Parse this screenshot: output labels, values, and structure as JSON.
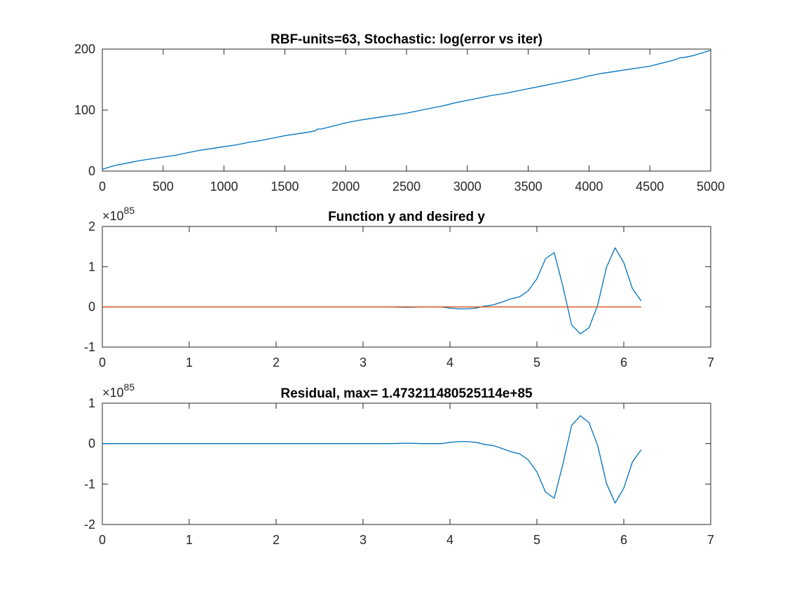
{
  "chart_data": [
    {
      "type": "line",
      "title": "RBF-units=63, Stochastic: log(error vs iter)",
      "xlim": [
        0,
        5000
      ],
      "ylim": [
        0,
        200
      ],
      "xticks": [
        "0",
        "500",
        "1000",
        "1500",
        "2000",
        "2500",
        "3000",
        "3500",
        "4000",
        "4500",
        "5000"
      ],
      "yticks": [
        "0",
        "100",
        "200"
      ],
      "exponent": "",
      "series": [
        {
          "color": "#0072BD",
          "x": [
            0,
            100,
            200,
            300,
            400,
            500,
            600,
            700,
            800,
            900,
            1000,
            1100,
            1200,
            1300,
            1400,
            1500,
            1600,
            1700,
            1750,
            1770,
            1800,
            1900,
            2000,
            2100,
            2200,
            2300,
            2400,
            2500,
            2600,
            2700,
            2800,
            2900,
            3000,
            3100,
            3200,
            3300,
            3400,
            3500,
            3600,
            3700,
            3800,
            3900,
            4000,
            4100,
            4200,
            4300,
            4400,
            4500,
            4600,
            4700,
            4750,
            4770,
            4800,
            4850,
            4900,
            5000
          ],
          "y": [
            3,
            9,
            13,
            17,
            20,
            23,
            26,
            30,
            34,
            37,
            40,
            43,
            47,
            50,
            54,
            58,
            61,
            64,
            66,
            69,
            69,
            74,
            79,
            83,
            86,
            89,
            92,
            95,
            99,
            103,
            107,
            112,
            116,
            120,
            124,
            127,
            131,
            135,
            139,
            143,
            147,
            151,
            156,
            160,
            163,
            166,
            169,
            172,
            177,
            182,
            186,
            186,
            187,
            189,
            192,
            198
          ]
        }
      ]
    },
    {
      "type": "line",
      "title": "Function y and desired y",
      "xlim": [
        0,
        7
      ],
      "ylim": [
        -1,
        2
      ],
      "xticks": [
        "0",
        "1",
        "2",
        "3",
        "4",
        "5",
        "6",
        "7"
      ],
      "yticks": [
        "-1",
        "0",
        "1",
        "2"
      ],
      "exponent": "85",
      "series": [
        {
          "color": "#0072BD",
          "x": [
            0,
            0.5,
            1,
            1.5,
            2,
            2.5,
            3,
            3.3,
            3.5,
            3.7,
            3.8,
            3.9,
            4.0,
            4.1,
            4.2,
            4.3,
            4.4,
            4.5,
            4.6,
            4.7,
            4.8,
            4.9,
            5.0,
            5.1,
            5.2,
            5.3,
            5.4,
            5.5,
            5.6,
            5.7,
            5.8,
            5.9,
            6.0,
            6.1,
            6.2
          ],
          "y": [
            0,
            0,
            0,
            0,
            0,
            0,
            0,
            0,
            -0.01,
            0,
            0,
            0,
            -0.03,
            -0.05,
            -0.05,
            -0.03,
            0.02,
            0.05,
            0.12,
            0.2,
            0.25,
            0.4,
            0.7,
            1.2,
            1.35,
            0.5,
            -0.45,
            -0.67,
            -0.52,
            0.05,
            0.98,
            1.47,
            1.1,
            0.45,
            0.15
          ]
        },
        {
          "color": "#D95319",
          "x": [
            0,
            6.2
          ],
          "y": [
            0,
            0
          ]
        }
      ]
    },
    {
      "type": "line",
      "title": "Residual, max= 1.47321148052511 4e+85",
      "xlim": [
        0,
        7
      ],
      "ylim": [
        -2,
        1
      ],
      "xticks": [
        "0",
        "1",
        "2",
        "3",
        "4",
        "5",
        "6",
        "7"
      ],
      "yticks": [
        "-2",
        "-1",
        "0",
        "1"
      ],
      "exponent": "85",
      "series": [
        {
          "color": "#0072BD",
          "x": [
            0,
            0.5,
            1,
            1.5,
            2,
            2.5,
            3,
            3.3,
            3.5,
            3.7,
            3.8,
            3.9,
            4.0,
            4.1,
            4.2,
            4.3,
            4.4,
            4.5,
            4.6,
            4.7,
            4.8,
            4.9,
            5.0,
            5.1,
            5.2,
            5.3,
            5.4,
            5.5,
            5.6,
            5.7,
            5.8,
            5.9,
            6.0,
            6.1,
            6.2
          ],
          "y": [
            0,
            0,
            0,
            0,
            0,
            0,
            0,
            0,
            0.01,
            0,
            0,
            0,
            0.03,
            0.05,
            0.05,
            0.03,
            -0.02,
            -0.05,
            -0.12,
            -0.2,
            -0.25,
            -0.4,
            -0.7,
            -1.2,
            -1.35,
            -0.5,
            0.45,
            0.69,
            0.52,
            -0.05,
            -0.98,
            -1.47,
            -1.1,
            -0.45,
            -0.15
          ]
        }
      ]
    }
  ]
}
